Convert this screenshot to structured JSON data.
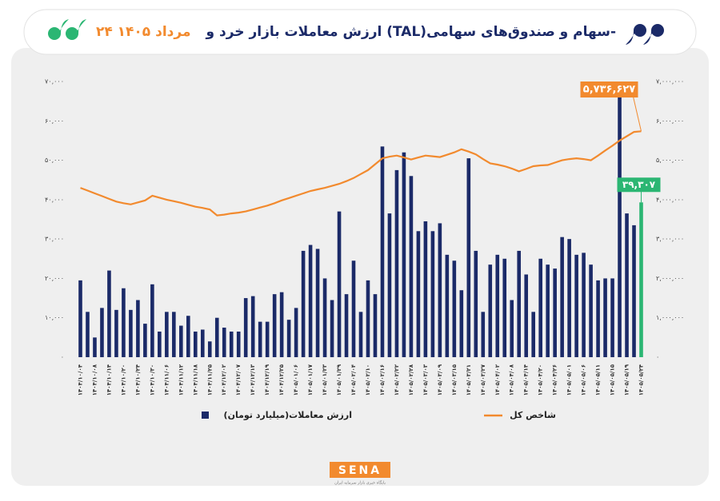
{
  "chart_data": {
    "type": "bar",
    "title": "ارزش معاملات بازار خرد و (TAL)سهام و صندوق‌های سهامی-",
    "title_date": "۲۴ مرداد ۱۴۰۵",
    "categories": [
      "۱۴۰۴/۱۰/۰۴",
      null,
      "۱۴۰۴/۱۰/۰۸",
      null,
      "۱۴۰۴/۱۰/۱۴",
      null,
      "۱۴۰۴/۱۰/۲۰",
      null,
      "۱۴۰۴/۱۰/۲۴",
      null,
      "۱۴۰۴/۱۰/۳۰",
      null,
      "۱۴۰۴/۱۱/۰۶",
      null,
      "۱۴۰۴/۱۱/۱۲",
      null,
      "۱۴۰۴/۱۱/۱۸",
      null,
      "۱۴۰۴/۱۱/۲۵",
      null,
      "۱۴۰۴/۱۲/۰۲",
      null,
      "۱۴۰۴/۱۲/۰۷",
      null,
      "۱۴۰۴/۱۲/۱۳",
      null,
      "۱۴۰۴/۱۲/۱۹",
      null,
      "۱۴۰۴/۱۲/۲۵",
      null,
      "۱۴۰۵/۰۱/۰۶",
      null,
      "۱۴۰۵/۰۱/۱۷",
      null,
      "۱۴۰۵/۰۱/۲۳",
      null,
      "۱۴۰۵/۰۱/۲۹",
      null,
      "۱۴۰۵/۰۲/۰۴",
      null,
      "۱۴۰۵/۰۲/۱۰",
      null,
      "۱۴۰۵/۰۲/۱۶",
      null,
      "۱۴۰۵/۰۲/۲۲",
      null,
      "۱۴۰۵/۰۲/۲۸",
      null,
      "۱۴۰۵/۰۳/۰۳",
      null,
      "۱۴۰۵/۰۳/۰۹",
      null,
      "۱۴۰۵/۰۳/۱۵",
      null,
      "۱۴۰۵/۰۳/۲۱",
      null,
      "۱۴۰۵/۰۳/۲۷",
      null,
      "۱۴۰۵/۰۴/۰۲",
      null,
      "۱۴۰۵/۰۴/۰۸",
      null,
      "۱۴۰۵/۰۴/۱۴",
      null,
      "۱۴۰۵/۰۴/۲۰",
      null,
      "۱۴۰۵/۰۴/۲۶",
      null,
      "۱۴۰۵/۰۵/۰۱",
      null,
      "۱۴۰۵/۰۵/۰۶",
      null,
      "۱۴۰۵/۰۵/۱۱",
      null,
      "۱۴۰۵/۰۵/۱۵",
      null,
      "۱۴۰۵/۰۵/۱۹",
      null,
      "۱۴۰۵/۰۵/۲۴"
    ],
    "series": [
      {
        "name": "ارزش معاملات(میلیارد تومان)",
        "type": "bar",
        "axis": "y",
        "color": "#1b2a68",
        "last_color": "#2bb673",
        "values": [
          19500,
          11500,
          5000,
          12500,
          22000,
          12000,
          17500,
          12000,
          14500,
          8500,
          18500,
          6500,
          11500,
          11500,
          8000,
          10500,
          6500,
          7000,
          4000,
          10000,
          7500,
          6500,
          6500,
          15000,
          15500,
          9000,
          9000,
          16000,
          16500,
          9500,
          12500,
          27000,
          28500,
          27500,
          20000,
          14500,
          37000,
          16000,
          24500,
          11500,
          19500,
          16000,
          53500,
          36500,
          47500,
          52000,
          46000,
          32000,
          34500,
          32000,
          34000,
          26000,
          24500,
          17000,
          50500,
          27000,
          11500,
          23500,
          26000,
          25000,
          14500,
          27000,
          21000,
          11500,
          25000,
          23500,
          22500,
          30500,
          30000,
          26000,
          26500,
          23500,
          19500,
          20000,
          20000,
          66000,
          36500,
          33500,
          39307
        ],
        "value_labels": [
          null,
          null,
          null,
          null,
          null,
          null,
          null,
          null,
          null,
          null,
          null,
          null,
          null,
          null,
          null,
          null,
          null,
          null,
          null,
          null,
          null,
          null,
          null,
          null,
          null,
          null,
          null,
          null,
          null,
          null,
          null,
          null,
          null,
          null,
          null,
          null,
          null,
          null,
          null,
          null,
          null,
          null,
          null,
          null,
          null,
          null,
          null,
          null,
          null,
          null,
          null,
          null,
          null,
          null,
          null,
          null,
          null,
          null,
          null,
          null,
          null,
          null,
          null,
          null,
          null,
          null,
          null,
          null,
          null,
          null,
          null,
          null,
          null,
          null,
          null,
          null,
          null,
          null,
          "۳۹,۳۰۷"
        ]
      },
      {
        "name": "شاخص کل",
        "type": "line",
        "axis": "y2",
        "color": "#f28a2e",
        "values": [
          4300000,
          4230000,
          4160000,
          4090000,
          4020000,
          3950000,
          3910000,
          3880000,
          3930000,
          3980000,
          4100000,
          4050000,
          4000000,
          3960000,
          3920000,
          3870000,
          3820000,
          3790000,
          3750000,
          3600000,
          3620000,
          3650000,
          3670000,
          3700000,
          3750000,
          3800000,
          3850000,
          3910000,
          3980000,
          4040000,
          4100000,
          4160000,
          4220000,
          4260000,
          4300000,
          4350000,
          4400000,
          4470000,
          4550000,
          4650000,
          4750000,
          4900000,
          5050000,
          5090000,
          5120000,
          5070000,
          5020000,
          5070000,
          5120000,
          5100000,
          5080000,
          5140000,
          5200000,
          5280000,
          5220000,
          5150000,
          5030000,
          4920000,
          4890000,
          4850000,
          4790000,
          4720000,
          4780000,
          4850000,
          4870000,
          4880000,
          4940000,
          5000000,
          5030000,
          5050000,
          5030000,
          5000000,
          5120000,
          5250000,
          5370000,
          5500000,
          5610000,
          5720000,
          5736627
        ],
        "value_labels": [
          null,
          null,
          null,
          null,
          null,
          null,
          null,
          null,
          null,
          null,
          null,
          null,
          null,
          null,
          null,
          null,
          null,
          null,
          null,
          null,
          null,
          null,
          null,
          null,
          null,
          null,
          null,
          null,
          null,
          null,
          null,
          null,
          null,
          null,
          null,
          null,
          null,
          null,
          null,
          null,
          null,
          null,
          null,
          null,
          null,
          null,
          null,
          null,
          null,
          null,
          null,
          null,
          null,
          null,
          null,
          null,
          null,
          null,
          null,
          null,
          null,
          null,
          null,
          null,
          null,
          null,
          null,
          null,
          null,
          null,
          null,
          null,
          null,
          null,
          null,
          null,
          null,
          null,
          "۵,۷۳۶,۶۲۷"
        ]
      }
    ],
    "ylim": [
      0,
      70000
    ],
    "yticks": [
      {
        "value": 0,
        "label": "۰"
      },
      {
        "value": 10000,
        "label": "۱۰,۰۰۰"
      },
      {
        "value": 20000,
        "label": "۲۰,۰۰۰"
      },
      {
        "value": 30000,
        "label": "۳۰,۰۰۰"
      },
      {
        "value": 40000,
        "label": "۴۰,۰۰۰"
      },
      {
        "value": 50000,
        "label": "۵۰,۰۰۰"
      },
      {
        "value": 60000,
        "label": "۶۰,۰۰۰"
      },
      {
        "value": 70000,
        "label": "۷۰,۰۰۰"
      }
    ],
    "y2lim": [
      0,
      7000000
    ],
    "y2ticks": [
      {
        "value": 0,
        "label": "۰"
      },
      {
        "value": 1000000,
        "label": "۱,۰۰۰,۰۰۰"
      },
      {
        "value": 2000000,
        "label": "۲,۰۰۰,۰۰۰"
      },
      {
        "value": 3000000,
        "label": "۳,۰۰۰,۰۰۰"
      },
      {
        "value": 4000000,
        "label": "۴,۰۰۰,۰۰۰"
      },
      {
        "value": 5000000,
        "label": "۵,۰۰۰,۰۰۰"
      },
      {
        "value": 6000000,
        "label": "۶,۰۰۰,۰۰۰"
      },
      {
        "value": 7000000,
        "label": "۷,۰۰۰,۰۰۰"
      }
    ],
    "grid": false,
    "logo": "SENA",
    "logo_caption": "پایگاه خبری بازار سرمایه ایران"
  }
}
